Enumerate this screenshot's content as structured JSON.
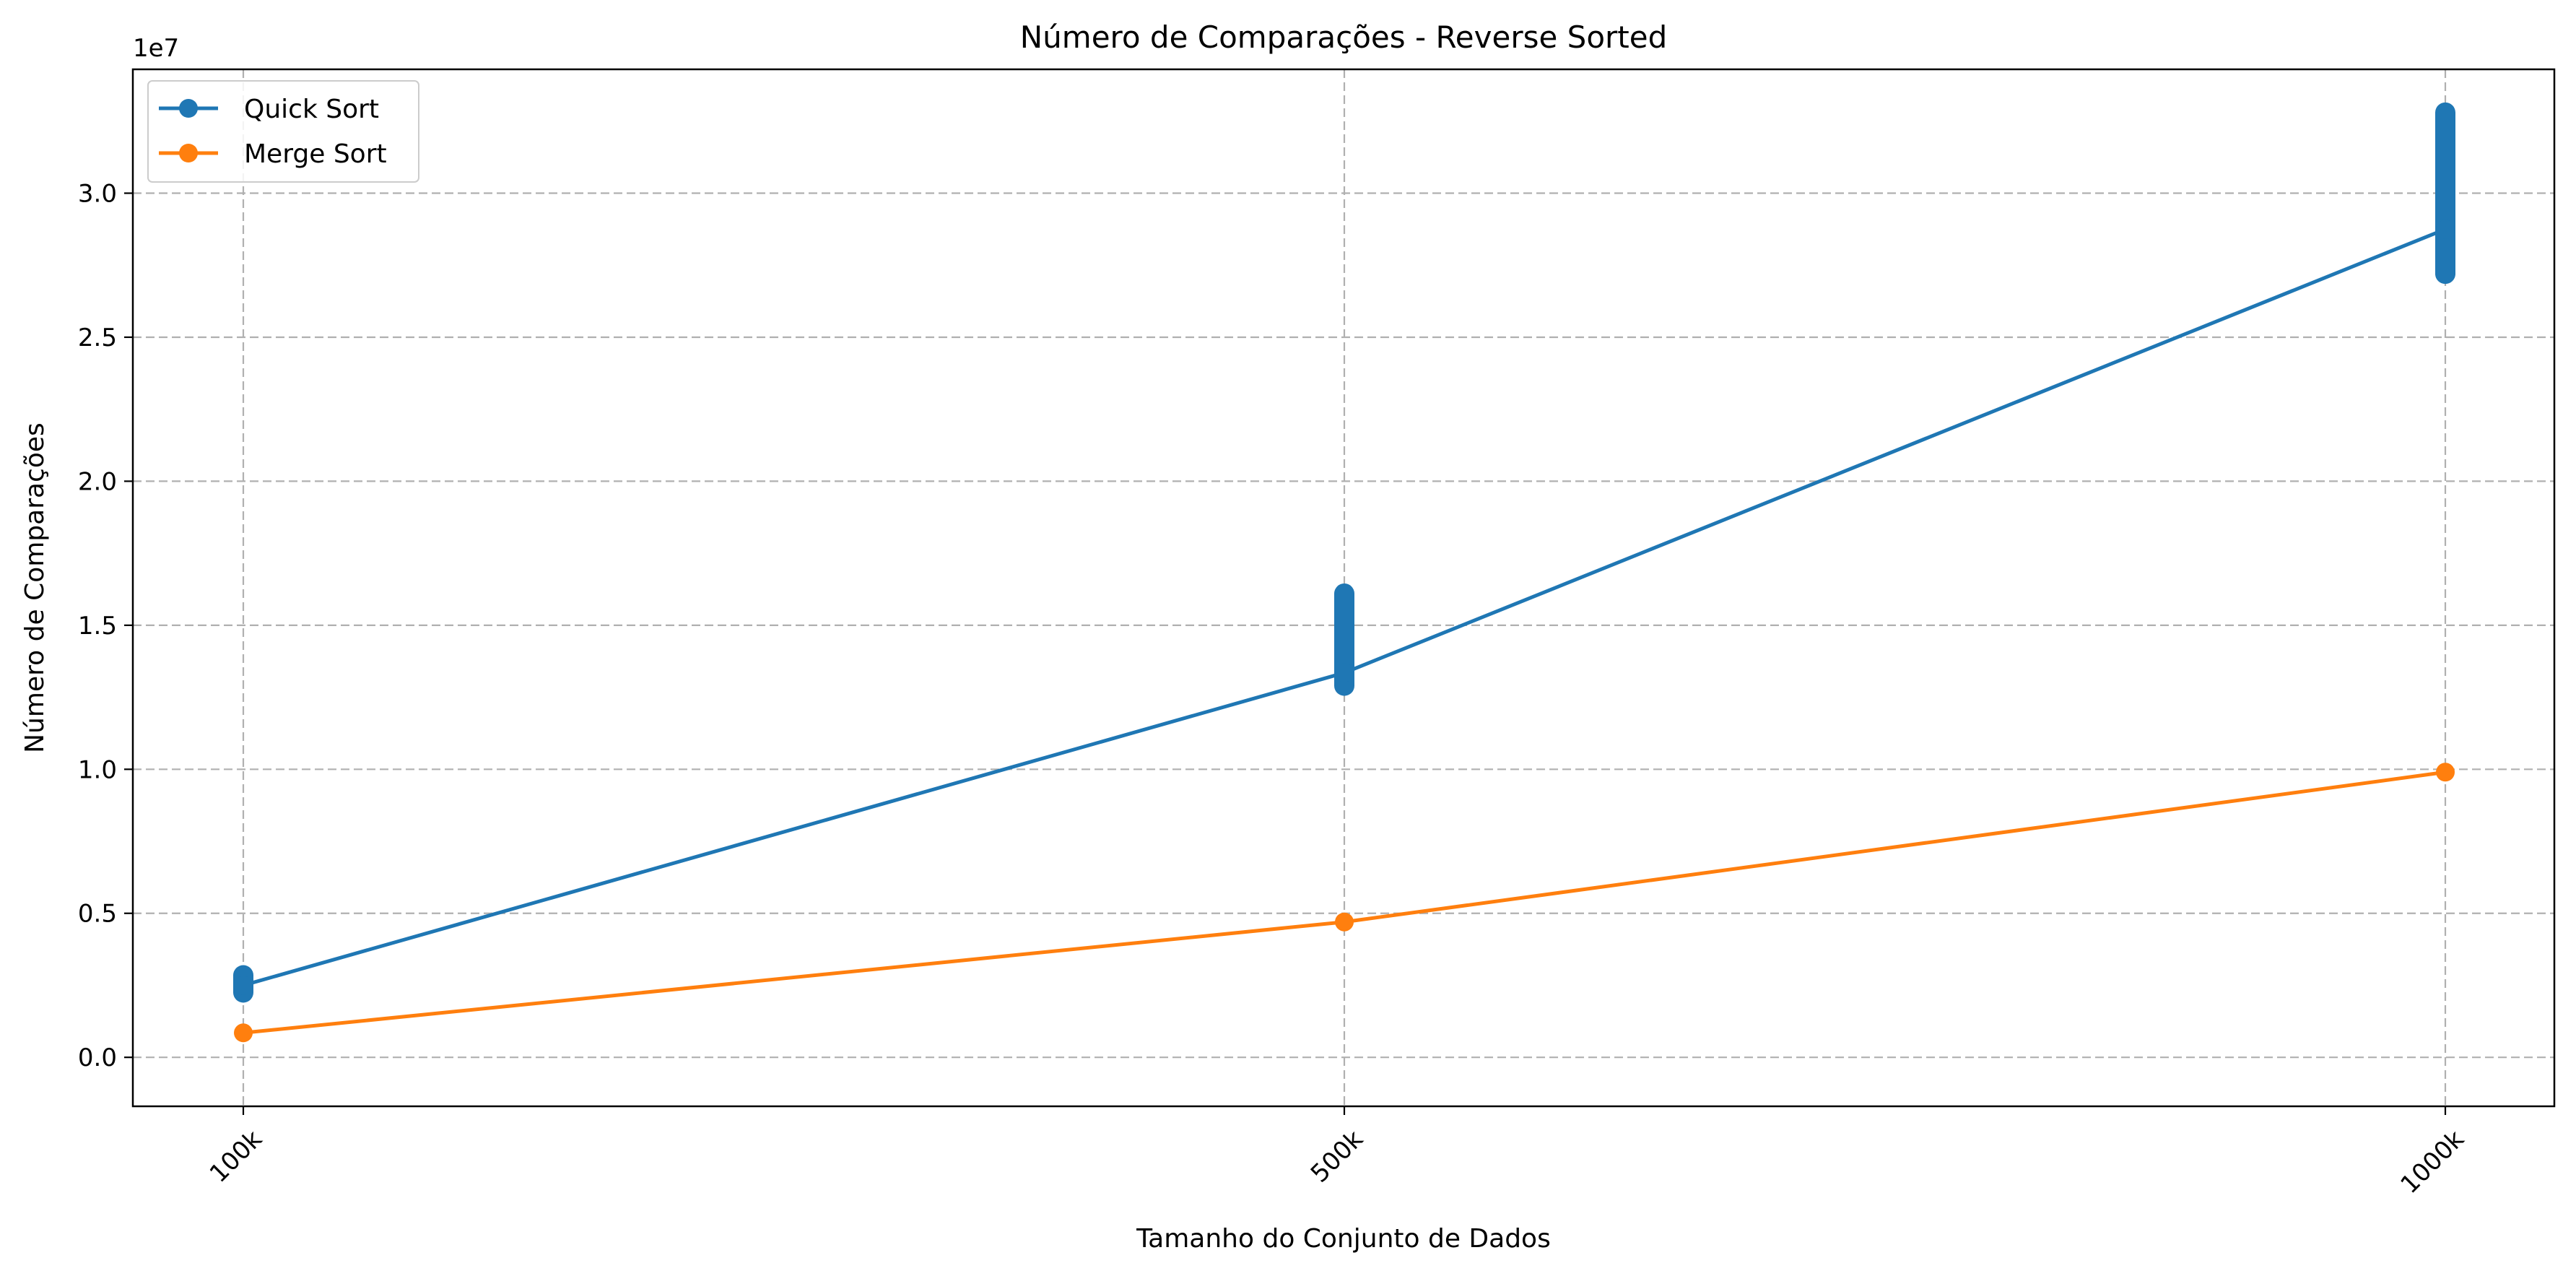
{
  "chart_data": {
    "type": "line",
    "title": "Número de Comparações - Reverse Sorted",
    "xlabel": "Tamanho do Conjunto de Dados",
    "ylabel": "Número de Comparações",
    "y_offset_label": "1e7",
    "categories": [
      "100k",
      "500k",
      "1000k"
    ],
    "y_ticks": [
      0.0,
      0.5,
      1.0,
      1.5,
      2.0,
      2.5,
      3.0
    ],
    "y_tick_labels": [
      "0.0",
      "0.5",
      "1.0",
      "1.5",
      "2.0",
      "2.5",
      "3.0"
    ],
    "ylim": [
      -0.17,
      3.43
    ],
    "grid": true,
    "legend_position": "top-left",
    "series": [
      {
        "name": "Quick Sort",
        "color": "#1f77b4",
        "values": [
          0.25,
          1.335,
          2.875
        ],
        "spread": [
          [
            0.225,
            0.285
          ],
          [
            1.29,
            1.61
          ],
          [
            2.72,
            3.28
          ]
        ]
      },
      {
        "name": "Merge Sort",
        "color": "#ff7f0e",
        "values": [
          0.085,
          0.47,
          0.99
        ],
        "spread": null
      }
    ]
  }
}
